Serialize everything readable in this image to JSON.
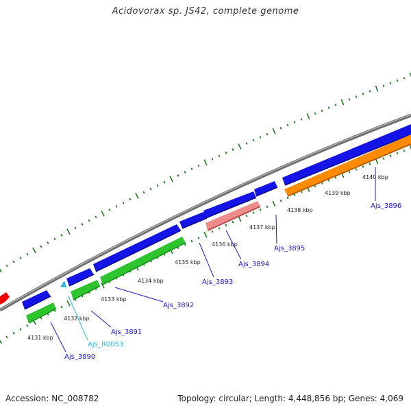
{
  "title": "Acidovorax sp. JS42, complete genome",
  "footer": {
    "accession": "Accession: NC_008782",
    "stats": "Topology: circular; Length: 4,448,856 bp; Genes: 4,069"
  },
  "colors": {
    "backbone": "#8a8a8a",
    "cds_forward": "#1010e0",
    "cds_reverse": "#2ec42e",
    "rRNA": "#e88a8a",
    "tRNA": "#ff8c00",
    "misc": "#2bb8e8",
    "other": "#ee0000",
    "tick": "#1e7a1e",
    "label_blue": "#1a1acc",
    "label_cyan": "#2bb8e8"
  },
  "ticks": [
    "4131 kbp",
    "4132 kbp",
    "4133 kbp",
    "4134 kbp",
    "4135 kbp",
    "4136 kbp",
    "4137 kbp",
    "4138 kbp",
    "4139 kbp",
    "4140 kbp"
  ],
  "gene_labels": [
    {
      "name": "Ajs_3890",
      "type": "blue"
    },
    {
      "name": "Ajs_3891",
      "type": "blue"
    },
    {
      "name": "Ajs_R0053",
      "type": "cyan"
    },
    {
      "name": "Ajs_3892",
      "type": "blue"
    },
    {
      "name": "Ajs_3893",
      "type": "blue"
    },
    {
      "name": "Ajs_3894",
      "type": "blue"
    },
    {
      "name": "Ajs_3895",
      "type": "blue"
    },
    {
      "name": "Ajs_3896",
      "type": "blue"
    }
  ]
}
